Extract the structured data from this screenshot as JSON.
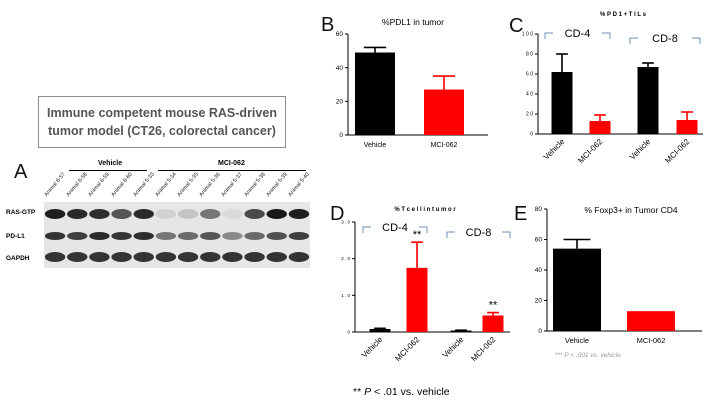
{
  "model_box": {
    "line1": "Immune competent mouse RAS-driven",
    "line2": "tumor model (CT26, colorectal cancer)"
  },
  "panel_letters": {
    "a": "A",
    "b": "B",
    "c": "C",
    "d": "D",
    "e": "E"
  },
  "blot": {
    "groups": [
      {
        "label": "Vehicle"
      },
      {
        "label": "MCI-062"
      }
    ],
    "lanes": [
      "Animal 6-57",
      "Animal 6-58",
      "Animal 6-59",
      "Animal 6-60",
      "Animal 5-33",
      "Animal 5-34",
      "Animal 5-35",
      "Animal 5-36",
      "Animal 5-37",
      "Animal 5-38",
      "Animal 5-39",
      "Animal 5-40"
    ],
    "rows": [
      "RAS-GTP",
      "PD-L1",
      "GAPDH"
    ],
    "intensities": {
      "RAS-GTP": [
        0.95,
        0.9,
        0.88,
        0.7,
        0.9,
        0.12,
        0.18,
        0.55,
        0.08,
        0.75,
        0.98,
        0.95
      ],
      "PD-L1": [
        0.85,
        0.8,
        0.9,
        0.85,
        0.88,
        0.55,
        0.6,
        0.7,
        0.45,
        0.6,
        0.72,
        0.8
      ],
      "GAPDH": [
        0.85,
        0.85,
        0.85,
        0.85,
        0.85,
        0.85,
        0.85,
        0.85,
        0.85,
        0.85,
        0.85,
        0.85
      ]
    }
  },
  "chart_data": [
    {
      "id": "B",
      "type": "bar",
      "title": "%PDL1 in tumor",
      "categories": [
        "Vehicle",
        "MCI-062"
      ],
      "values": [
        49,
        27
      ],
      "errors": [
        3,
        8
      ],
      "colors": [
        "#000000",
        "#ff0000"
      ],
      "ylim": [
        0,
        60
      ],
      "yticks": [
        "0",
        "20",
        "40",
        "60"
      ]
    },
    {
      "id": "C",
      "type": "bar",
      "title": "% P D 1 + T I L s",
      "categories": [
        "Vehicle",
        "MCI-062",
        "Vehicle",
        "MCI-062"
      ],
      "values": [
        62,
        13,
        67,
        14
      ],
      "errors": [
        18,
        6,
        4,
        8
      ],
      "colors": [
        "#000000",
        "#ff0000",
        "#000000",
        "#ff0000"
      ],
      "ylim": [
        0,
        100
      ],
      "yticks": [
        "0",
        "2 0",
        "4 0",
        "6 0",
        "8 0",
        "1 0 0"
      ],
      "groups": [
        "CD-4",
        "CD-8"
      ]
    },
    {
      "id": "D",
      "type": "bar",
      "title": "% T  c e l l  i n  t u m o r",
      "categories": [
        "Vehicle",
        "MCI-062",
        "Vehicle",
        "MCI-062"
      ],
      "values": [
        0.08,
        1.75,
        0.04,
        0.45
      ],
      "errors": [
        0.02,
        0.7,
        0.01,
        0.08
      ],
      "colors": [
        "#000000",
        "#ff0000",
        "#000000",
        "#ff0000"
      ],
      "ylim": [
        0,
        3
      ],
      "yticks": [
        "0",
        "1 . 0",
        "2 . 0",
        "3 . 0"
      ],
      "groups": [
        "CD-4",
        "CD-8"
      ],
      "annotations": [
        "**",
        "**"
      ]
    },
    {
      "id": "E",
      "type": "bar",
      "title": "% Foxp3+ in Tumor CD4",
      "categories": [
        "Vehicle",
        "MCI-062"
      ],
      "values": [
        54,
        13
      ],
      "errors": [
        6,
        0
      ],
      "colors": [
        "#000000",
        "#ff0000"
      ],
      "ylim": [
        0,
        80
      ],
      "yticks": [
        "0",
        "20",
        "40",
        "60",
        "80"
      ],
      "note": "*** P < .001 vs. vehicle"
    }
  ],
  "footnote": {
    "stars": "**",
    "p": "P",
    "text": " < .01 vs. vehicle"
  }
}
